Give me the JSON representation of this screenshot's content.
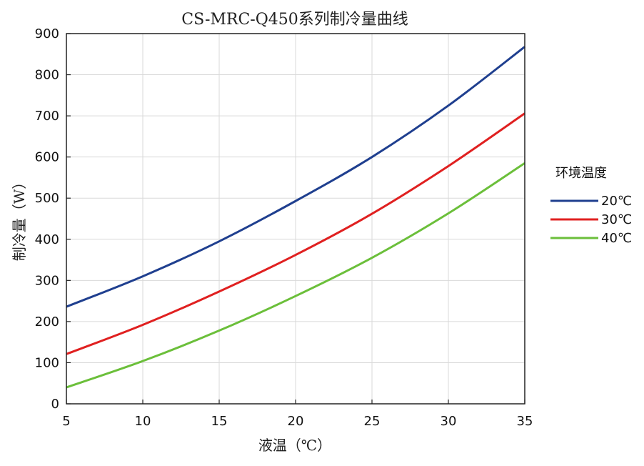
{
  "chart_data": {
    "type": "line",
    "title": "CS-MRC-Q450系列制冷量曲线",
    "xlabel": "液温（℃）",
    "ylabel": "制冷量（W）",
    "xlim": [
      5,
      35
    ],
    "ylim": [
      0,
      900
    ],
    "xticks": [
      5,
      10,
      15,
      20,
      25,
      30,
      35
    ],
    "yticks": [
      0,
      100,
      200,
      300,
      400,
      500,
      600,
      700,
      800,
      900
    ],
    "grid": true,
    "legend": {
      "title": "环境温度",
      "position": "right"
    },
    "x": [
      5,
      10,
      15,
      20,
      25,
      30,
      35
    ],
    "series": [
      {
        "name": "20℃",
        "color": "#1f3f8f",
        "values": [
          236,
          310,
          395,
          493,
          600,
          725,
          868
        ]
      },
      {
        "name": "30℃",
        "color": "#e02020",
        "values": [
          121,
          192,
          273,
          362,
          462,
          578,
          706
        ]
      },
      {
        "name": "40℃",
        "color": "#6bbf3a",
        "values": [
          40,
          104,
          178,
          262,
          355,
          463,
          585
        ]
      }
    ]
  }
}
